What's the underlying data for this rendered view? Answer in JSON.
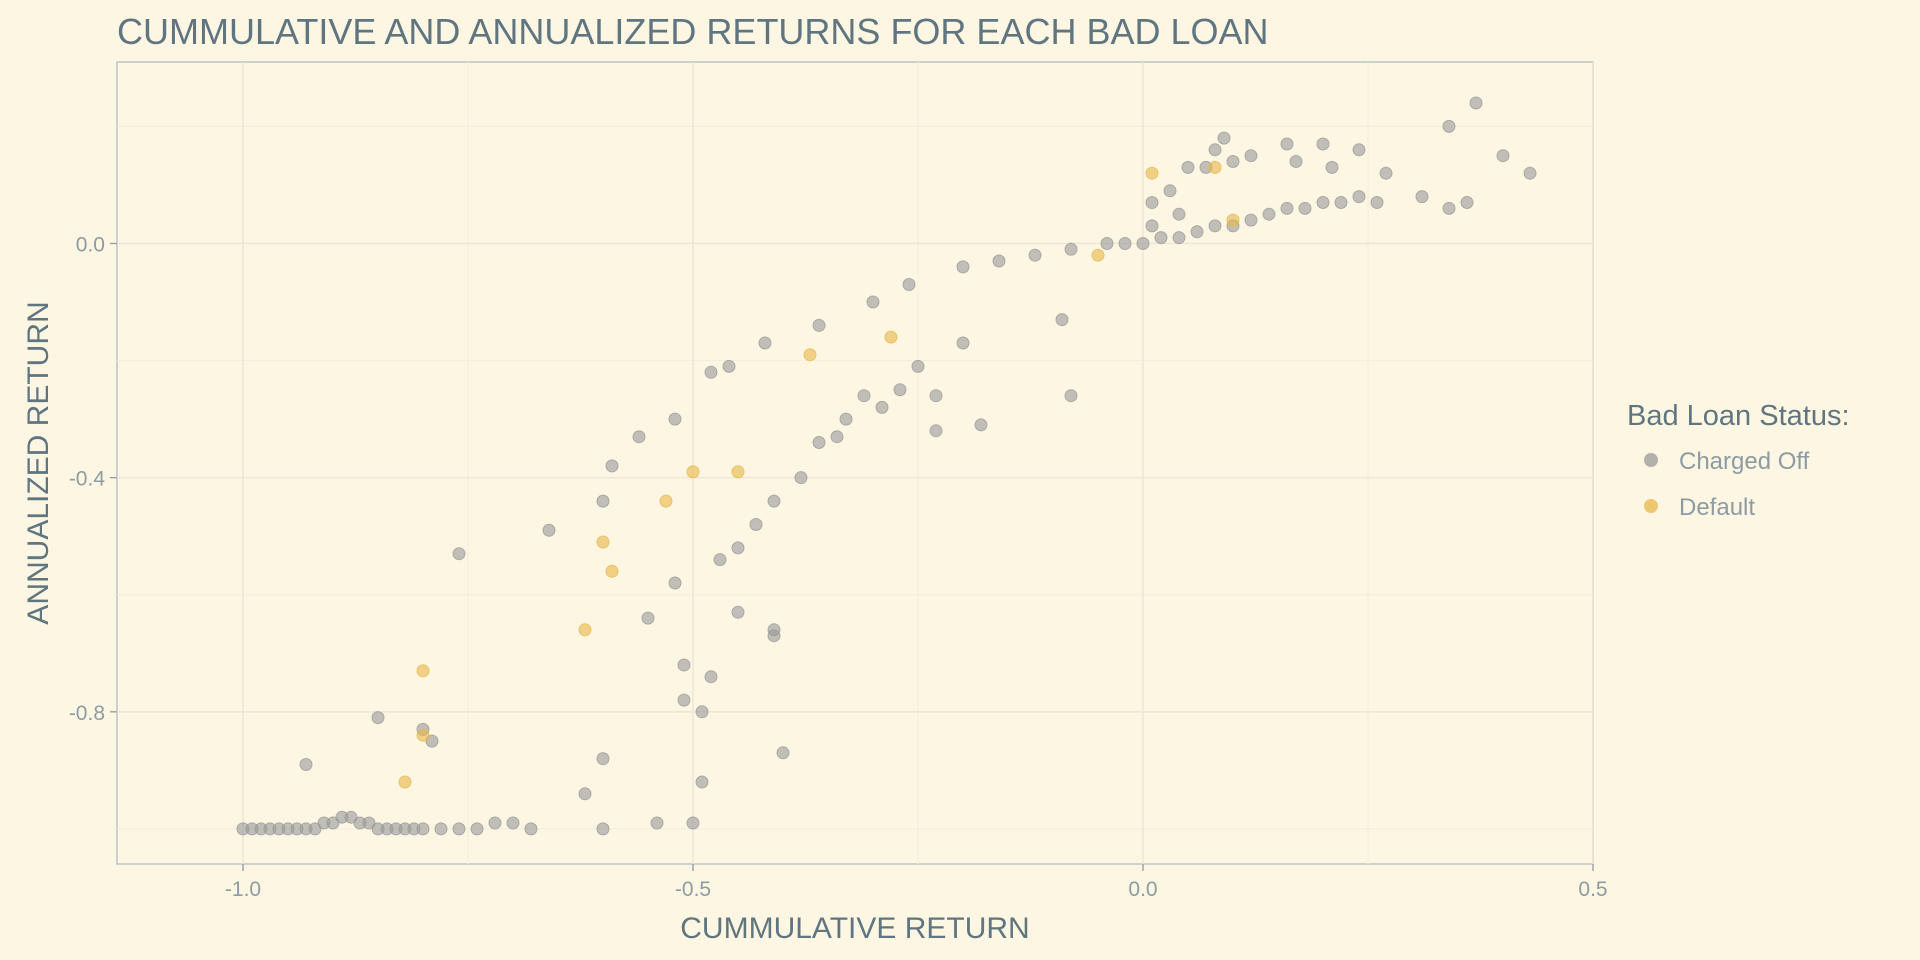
{
  "chart_data": {
    "type": "scatter",
    "title": "CUMMULATIVE AND ANNUALIZED RETURNS FOR EACH BAD LOAN",
    "xlabel": "CUMMULATIVE RETURN",
    "ylabel": "ANNUALIZED RETURN",
    "xlim": [
      -1.14,
      0.5
    ],
    "ylim": [
      -1.06,
      0.31
    ],
    "x_ticks": [
      -1.0,
      -0.5,
      0.0,
      0.5
    ],
    "x_tick_labels": [
      "-1.0",
      "-0.5",
      "0.0",
      "0.5"
    ],
    "y_ticks": [
      -0.8,
      -0.4,
      0.0
    ],
    "y_tick_labels": [
      "-0.8",
      "-0.4",
      "0.0"
    ],
    "grid": true,
    "legend": {
      "title": "Bad Loan Status:",
      "position": "right",
      "entries": [
        "Charged Off",
        "Default"
      ]
    },
    "series": [
      {
        "name": "Charged Off",
        "color": "#9A9A9A",
        "points": [
          [
            -1.0,
            -1.0
          ],
          [
            -0.99,
            -1.0
          ],
          [
            -0.98,
            -1.0
          ],
          [
            -0.97,
            -1.0
          ],
          [
            -0.96,
            -1.0
          ],
          [
            -0.95,
            -1.0
          ],
          [
            -0.94,
            -1.0
          ],
          [
            -0.93,
            -1.0
          ],
          [
            -0.92,
            -1.0
          ],
          [
            -0.91,
            -0.99
          ],
          [
            -0.9,
            -0.99
          ],
          [
            -0.89,
            -0.98
          ],
          [
            -0.88,
            -0.98
          ],
          [
            -0.87,
            -0.99
          ],
          [
            -0.86,
            -0.99
          ],
          [
            -0.85,
            -1.0
          ],
          [
            -0.84,
            -1.0
          ],
          [
            -0.83,
            -1.0
          ],
          [
            -0.82,
            -1.0
          ],
          [
            -0.81,
            -1.0
          ],
          [
            -0.8,
            -1.0
          ],
          [
            -0.78,
            -1.0
          ],
          [
            -0.76,
            -1.0
          ],
          [
            -0.74,
            -1.0
          ],
          [
            -0.72,
            -0.99
          ],
          [
            -0.7,
            -0.99
          ],
          [
            -0.68,
            -1.0
          ],
          [
            -0.6,
            -1.0
          ],
          [
            -0.5,
            -0.99
          ],
          [
            -0.93,
            -0.89
          ],
          [
            -0.85,
            -0.81
          ],
          [
            -0.8,
            -0.83
          ],
          [
            -0.79,
            -0.85
          ],
          [
            -0.62,
            -0.94
          ],
          [
            -0.6,
            -0.88
          ],
          [
            -0.49,
            -0.92
          ],
          [
            -0.54,
            -0.99
          ],
          [
            -0.4,
            -0.87
          ],
          [
            -0.51,
            -0.78
          ],
          [
            -0.49,
            -0.8
          ],
          [
            -0.48,
            -0.74
          ],
          [
            -0.45,
            -0.63
          ],
          [
            -0.41,
            -0.66
          ],
          [
            -0.41,
            -0.67
          ],
          [
            -0.51,
            -0.72
          ],
          [
            -0.76,
            -0.53
          ],
          [
            -0.66,
            -0.49
          ],
          [
            -0.6,
            -0.44
          ],
          [
            -0.59,
            -0.38
          ],
          [
            -0.56,
            -0.33
          ],
          [
            -0.52,
            -0.3
          ],
          [
            -0.48,
            -0.22
          ],
          [
            -0.46,
            -0.21
          ],
          [
            -0.42,
            -0.17
          ],
          [
            -0.36,
            -0.14
          ],
          [
            -0.3,
            -0.1
          ],
          [
            -0.26,
            -0.07
          ],
          [
            -0.2,
            -0.04
          ],
          [
            -0.16,
            -0.03
          ],
          [
            -0.12,
            -0.02
          ],
          [
            -0.08,
            -0.01
          ],
          [
            -0.04,
            0.0
          ],
          [
            -0.02,
            0.0
          ],
          [
            0.0,
            0.0
          ],
          [
            0.02,
            0.01
          ],
          [
            0.04,
            0.01
          ],
          [
            0.06,
            0.02
          ],
          [
            0.08,
            0.03
          ],
          [
            0.1,
            0.03
          ],
          [
            0.12,
            0.04
          ],
          [
            0.14,
            0.05
          ],
          [
            0.16,
            0.06
          ],
          [
            0.18,
            0.06
          ],
          [
            0.2,
            0.07
          ],
          [
            0.22,
            0.07
          ],
          [
            0.24,
            0.08
          ],
          [
            0.26,
            0.07
          ],
          [
            0.01,
            0.07
          ],
          [
            0.03,
            0.09
          ],
          [
            0.05,
            0.13
          ],
          [
            0.07,
            0.13
          ],
          [
            0.08,
            0.16
          ],
          [
            0.09,
            0.18
          ],
          [
            0.1,
            0.14
          ],
          [
            0.12,
            0.15
          ],
          [
            0.16,
            0.17
          ],
          [
            0.17,
            0.14
          ],
          [
            0.2,
            0.17
          ],
          [
            0.21,
            0.13
          ],
          [
            0.24,
            0.16
          ],
          [
            0.27,
            0.12
          ],
          [
            0.31,
            0.08
          ],
          [
            0.34,
            0.2
          ],
          [
            0.34,
            0.06
          ],
          [
            0.36,
            0.07
          ],
          [
            0.37,
            0.24
          ],
          [
            0.4,
            0.15
          ],
          [
            0.43,
            0.12
          ],
          [
            0.01,
            0.03
          ],
          [
            0.04,
            0.05
          ],
          [
            -0.09,
            -0.13
          ],
          [
            -0.08,
            -0.26
          ],
          [
            -0.2,
            -0.17
          ],
          [
            -0.23,
            -0.26
          ],
          [
            -0.25,
            -0.21
          ],
          [
            -0.27,
            -0.25
          ],
          [
            -0.29,
            -0.28
          ],
          [
            -0.23,
            -0.32
          ],
          [
            -0.18,
            -0.31
          ],
          [
            -0.31,
            -0.26
          ],
          [
            -0.33,
            -0.3
          ],
          [
            -0.34,
            -0.33
          ],
          [
            -0.36,
            -0.34
          ],
          [
            -0.38,
            -0.4
          ],
          [
            -0.41,
            -0.44
          ],
          [
            -0.43,
            -0.48
          ],
          [
            -0.45,
            -0.52
          ],
          [
            -0.47,
            -0.54
          ],
          [
            -0.52,
            -0.58
          ],
          [
            -0.55,
            -0.64
          ]
        ]
      },
      {
        "name": "Default",
        "color": "#E8B84A",
        "points": [
          [
            0.01,
            0.12
          ],
          [
            0.08,
            0.13
          ],
          [
            0.1,
            0.04
          ],
          [
            -0.05,
            -0.02
          ],
          [
            -0.28,
            -0.16
          ],
          [
            -0.37,
            -0.19
          ],
          [
            -0.45,
            -0.39
          ],
          [
            -0.5,
            -0.39
          ],
          [
            -0.53,
            -0.44
          ],
          [
            -0.6,
            -0.51
          ],
          [
            -0.59,
            -0.56
          ],
          [
            -0.62,
            -0.66
          ],
          [
            -0.8,
            -0.73
          ],
          [
            -0.8,
            -0.84
          ],
          [
            -0.82,
            -0.92
          ]
        ]
      }
    ]
  }
}
